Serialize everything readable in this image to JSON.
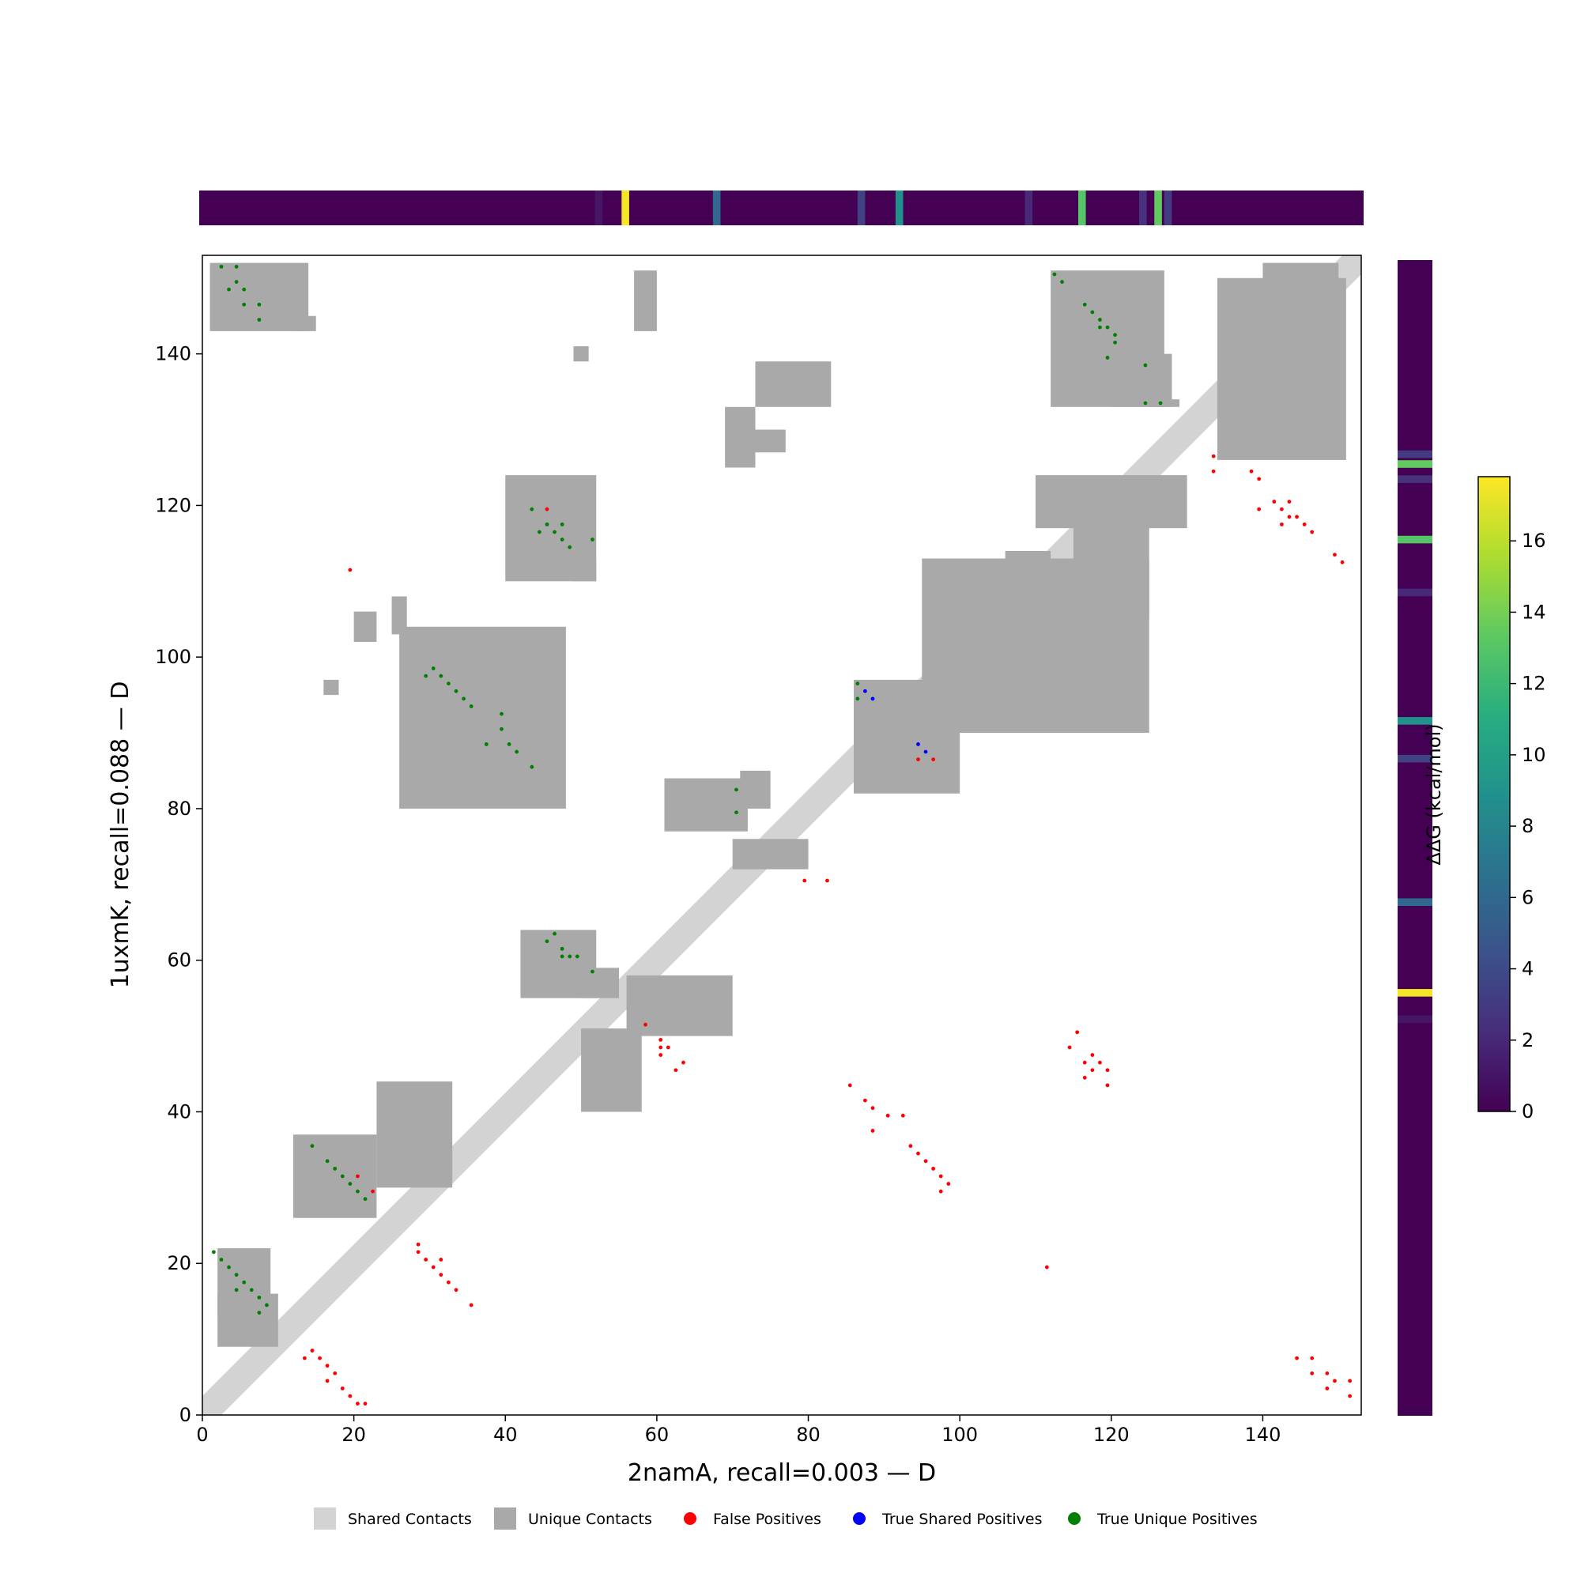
{
  "chart_data": {
    "type": "heatmap",
    "xlabel": "2namA, recall=0.003 — D",
    "ylabel": "1uxmK, recall=0.088 — D",
    "xlim": [
      0,
      153
    ],
    "ylim": [
      0,
      153
    ],
    "xticks": [
      0,
      20,
      40,
      60,
      80,
      100,
      120,
      140
    ],
    "yticks": [
      0,
      20,
      40,
      60,
      80,
      100,
      120,
      140
    ],
    "colorbar": {
      "label": "ΔΔG (kcal/mol)",
      "colormap": "viridis",
      "range": [
        0,
        17.8
      ],
      "ticks": [
        0,
        2,
        4,
        6,
        8,
        10,
        12,
        14,
        16
      ]
    },
    "ddg_bands": [
      {
        "residue": 52.5,
        "value": 1.0
      },
      {
        "residue": 56,
        "value": 17.5
      },
      {
        "residue": 68,
        "value": 6.0
      },
      {
        "residue": 87,
        "value": 3.5
      },
      {
        "residue": 92,
        "value": 9.0
      },
      {
        "residue": 109,
        "value": 2.0
      },
      {
        "residue": 116,
        "value": 13.0
      },
      {
        "residue": 124,
        "value": 2.5
      },
      {
        "residue": 126,
        "value": 13.5
      },
      {
        "residue": 127.3,
        "value": 3.0
      }
    ],
    "legend": [
      {
        "label": "Shared Contacts",
        "color": "#d3d3d3",
        "marker": "square"
      },
      {
        "label": "Unique Contacts",
        "color": "#a9a9a9",
        "marker": "square"
      },
      {
        "label": "False Positives",
        "color": "#ff0000",
        "marker": "circle"
      },
      {
        "label": "True Shared Positives",
        "color": "#0000ff",
        "marker": "circle"
      },
      {
        "label": "True Unique Positives",
        "color": "#008000",
        "marker": "circle"
      }
    ],
    "shared_contacts": {
      "description_of_shape": "diagonal band",
      "diagonal_band_halfwidth": 2.5
    },
    "unique_contact_regions": [
      [
        2,
        13,
        9,
        22
      ],
      [
        12,
        26,
        23,
        37
      ],
      [
        23,
        30,
        33,
        44
      ],
      [
        2,
        9,
        10,
        16
      ],
      [
        1,
        143,
        14,
        152
      ],
      [
        12,
        143,
        15,
        145
      ],
      [
        26,
        80,
        48,
        104
      ],
      [
        20,
        102,
        23,
        106
      ],
      [
        25,
        103,
        27,
        108
      ],
      [
        16,
        95,
        18,
        97
      ],
      [
        40,
        110,
        52,
        124
      ],
      [
        49,
        110,
        52,
        113
      ],
      [
        42,
        55,
        52,
        64
      ],
      [
        50,
        55,
        55,
        59
      ],
      [
        61,
        77,
        72,
        84
      ],
      [
        71,
        80,
        75,
        85
      ],
      [
        70,
        72,
        80,
        76
      ],
      [
        56,
        50,
        70,
        58
      ],
      [
        63,
        53,
        66,
        56
      ],
      [
        50,
        40,
        58,
        51
      ],
      [
        86,
        82,
        100,
        97
      ],
      [
        92,
        86,
        97,
        90
      ],
      [
        73,
        133,
        83,
        139
      ],
      [
        69,
        125,
        73,
        133
      ],
      [
        71,
        127,
        77,
        130
      ],
      [
        57,
        143,
        60,
        151
      ],
      [
        49,
        139,
        51,
        141
      ],
      [
        95,
        90,
        125,
        113
      ],
      [
        115,
        105,
        125,
        120
      ],
      [
        110,
        117,
        130,
        124
      ],
      [
        101,
        108,
        105,
        111
      ],
      [
        106,
        110,
        112,
        114
      ],
      [
        112,
        133,
        127,
        151
      ],
      [
        120,
        133,
        128,
        140
      ],
      [
        125,
        133,
        129,
        134
      ],
      [
        134,
        126,
        151,
        150
      ],
      [
        140,
        136,
        150,
        152
      ]
    ],
    "false_positives": [
      [
        13,
        7
      ],
      [
        14,
        8
      ],
      [
        15,
        7
      ],
      [
        16,
        6
      ],
      [
        17,
        5
      ],
      [
        16,
        4
      ],
      [
        18,
        3
      ],
      [
        19,
        2
      ],
      [
        20,
        1
      ],
      [
        21,
        1
      ],
      [
        28,
        22
      ],
      [
        28,
        21
      ],
      [
        29,
        20
      ],
      [
        30,
        19
      ],
      [
        31,
        18
      ],
      [
        32,
        17
      ],
      [
        33,
        16
      ],
      [
        35,
        14
      ],
      [
        31,
        20
      ],
      [
        20,
        31
      ],
      [
        22,
        29
      ],
      [
        19,
        111
      ],
      [
        45,
        119
      ],
      [
        58,
        51
      ],
      [
        60,
        49
      ],
      [
        60,
        47
      ],
      [
        61,
        48
      ],
      [
        62,
        45
      ],
      [
        63,
        46
      ],
      [
        60,
        48
      ],
      [
        79,
        70
      ],
      [
        82,
        70
      ],
      [
        94,
        86
      ],
      [
        96,
        86
      ],
      [
        85,
        43
      ],
      [
        87,
        41
      ],
      [
        88,
        40
      ],
      [
        90,
        39
      ],
      [
        92,
        39
      ],
      [
        88,
        37
      ],
      [
        93,
        35
      ],
      [
        94,
        34
      ],
      [
        95,
        33
      ],
      [
        96,
        32
      ],
      [
        97,
        31
      ],
      [
        98,
        30
      ],
      [
        97,
        29
      ],
      [
        111,
        19
      ],
      [
        114,
        48
      ],
      [
        115,
        50
      ],
      [
        116,
        46
      ],
      [
        116,
        44
      ],
      [
        117,
        47
      ],
      [
        117,
        45
      ],
      [
        118,
        46
      ],
      [
        119,
        45
      ],
      [
        119,
        43
      ],
      [
        133,
        126
      ],
      [
        133,
        124
      ],
      [
        138,
        124
      ],
      [
        139,
        123
      ],
      [
        139,
        119
      ],
      [
        141,
        120
      ],
      [
        142,
        119
      ],
      [
        142,
        117
      ],
      [
        143,
        120
      ],
      [
        143,
        118
      ],
      [
        144,
        118
      ],
      [
        145,
        117
      ],
      [
        146,
        116
      ],
      [
        149,
        113
      ],
      [
        150,
        112
      ],
      [
        144,
        7
      ],
      [
        146,
        7
      ],
      [
        146,
        5
      ],
      [
        148,
        5
      ],
      [
        148,
        3
      ],
      [
        149,
        4
      ],
      [
        151,
        4
      ],
      [
        151,
        2
      ]
    ],
    "true_shared_positives": [
      [
        87,
        95
      ],
      [
        88,
        94
      ],
      [
        94,
        88
      ],
      [
        95,
        87
      ]
    ],
    "true_unique_positives": [
      [
        1,
        21
      ],
      [
        2,
        20
      ],
      [
        3,
        19
      ],
      [
        4,
        18
      ],
      [
        4,
        16
      ],
      [
        5,
        17
      ],
      [
        6,
        16
      ],
      [
        7,
        15
      ],
      [
        8,
        14
      ],
      [
        7,
        13
      ],
      [
        14,
        35
      ],
      [
        16,
        33
      ],
      [
        17,
        32
      ],
      [
        18,
        31
      ],
      [
        19,
        30
      ],
      [
        20,
        29
      ],
      [
        21,
        28
      ],
      [
        2,
        151
      ],
      [
        4,
        151
      ],
      [
        3,
        148
      ],
      [
        4,
        149
      ],
      [
        5,
        148
      ],
      [
        5,
        146
      ],
      [
        7,
        146
      ],
      [
        7,
        144
      ],
      [
        29,
        97
      ],
      [
        30,
        98
      ],
      [
        31,
        97
      ],
      [
        32,
        96
      ],
      [
        33,
        95
      ],
      [
        34,
        94
      ],
      [
        35,
        93
      ],
      [
        37,
        88
      ],
      [
        39,
        90
      ],
      [
        39,
        92
      ],
      [
        40,
        88
      ],
      [
        41,
        87
      ],
      [
        43,
        85
      ],
      [
        43,
        119
      ],
      [
        44,
        116
      ],
      [
        45,
        117
      ],
      [
        46,
        116
      ],
      [
        47,
        117
      ],
      [
        47,
        115
      ],
      [
        48,
        114
      ],
      [
        51,
        115
      ],
      [
        45,
        62
      ],
      [
        46,
        63
      ],
      [
        47,
        61
      ],
      [
        47,
        60
      ],
      [
        48,
        60
      ],
      [
        49,
        60
      ],
      [
        51,
        58
      ],
      [
        70,
        82
      ],
      [
        70,
        79
      ],
      [
        86,
        96
      ],
      [
        86,
        94
      ],
      [
        112,
        150
      ],
      [
        113,
        149
      ],
      [
        116,
        146
      ],
      [
        117,
        145
      ],
      [
        118,
        144
      ],
      [
        118,
        143
      ],
      [
        119,
        143
      ],
      [
        120,
        142
      ],
      [
        120,
        141
      ],
      [
        119,
        139
      ],
      [
        124,
        138
      ],
      [
        124,
        133
      ],
      [
        126,
        133
      ]
    ]
  }
}
